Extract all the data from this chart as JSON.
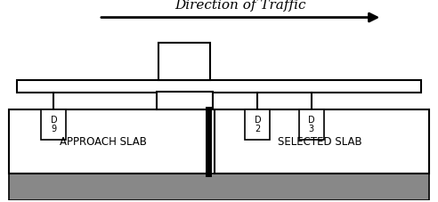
{
  "title": "Direction of Traffic",
  "title_fontsize": 11,
  "fig_width": 4.92,
  "fig_height": 2.27,
  "dpi": 100,
  "bg_color": "#ffffff",
  "slab_fill": "#ffffff",
  "subbase_fill": "#888888",
  "approach_label": "APPROACH SLAB",
  "selected_label": "SELECTED SLAB",
  "sensor_labels": [
    "D\n9",
    "D\n2",
    "D\n3"
  ],
  "sensor_label_fontsize": 7,
  "slab_label_fontsize": 8.5,
  "xlim": [
    0,
    10
  ],
  "ylim": [
    0,
    4.5
  ]
}
